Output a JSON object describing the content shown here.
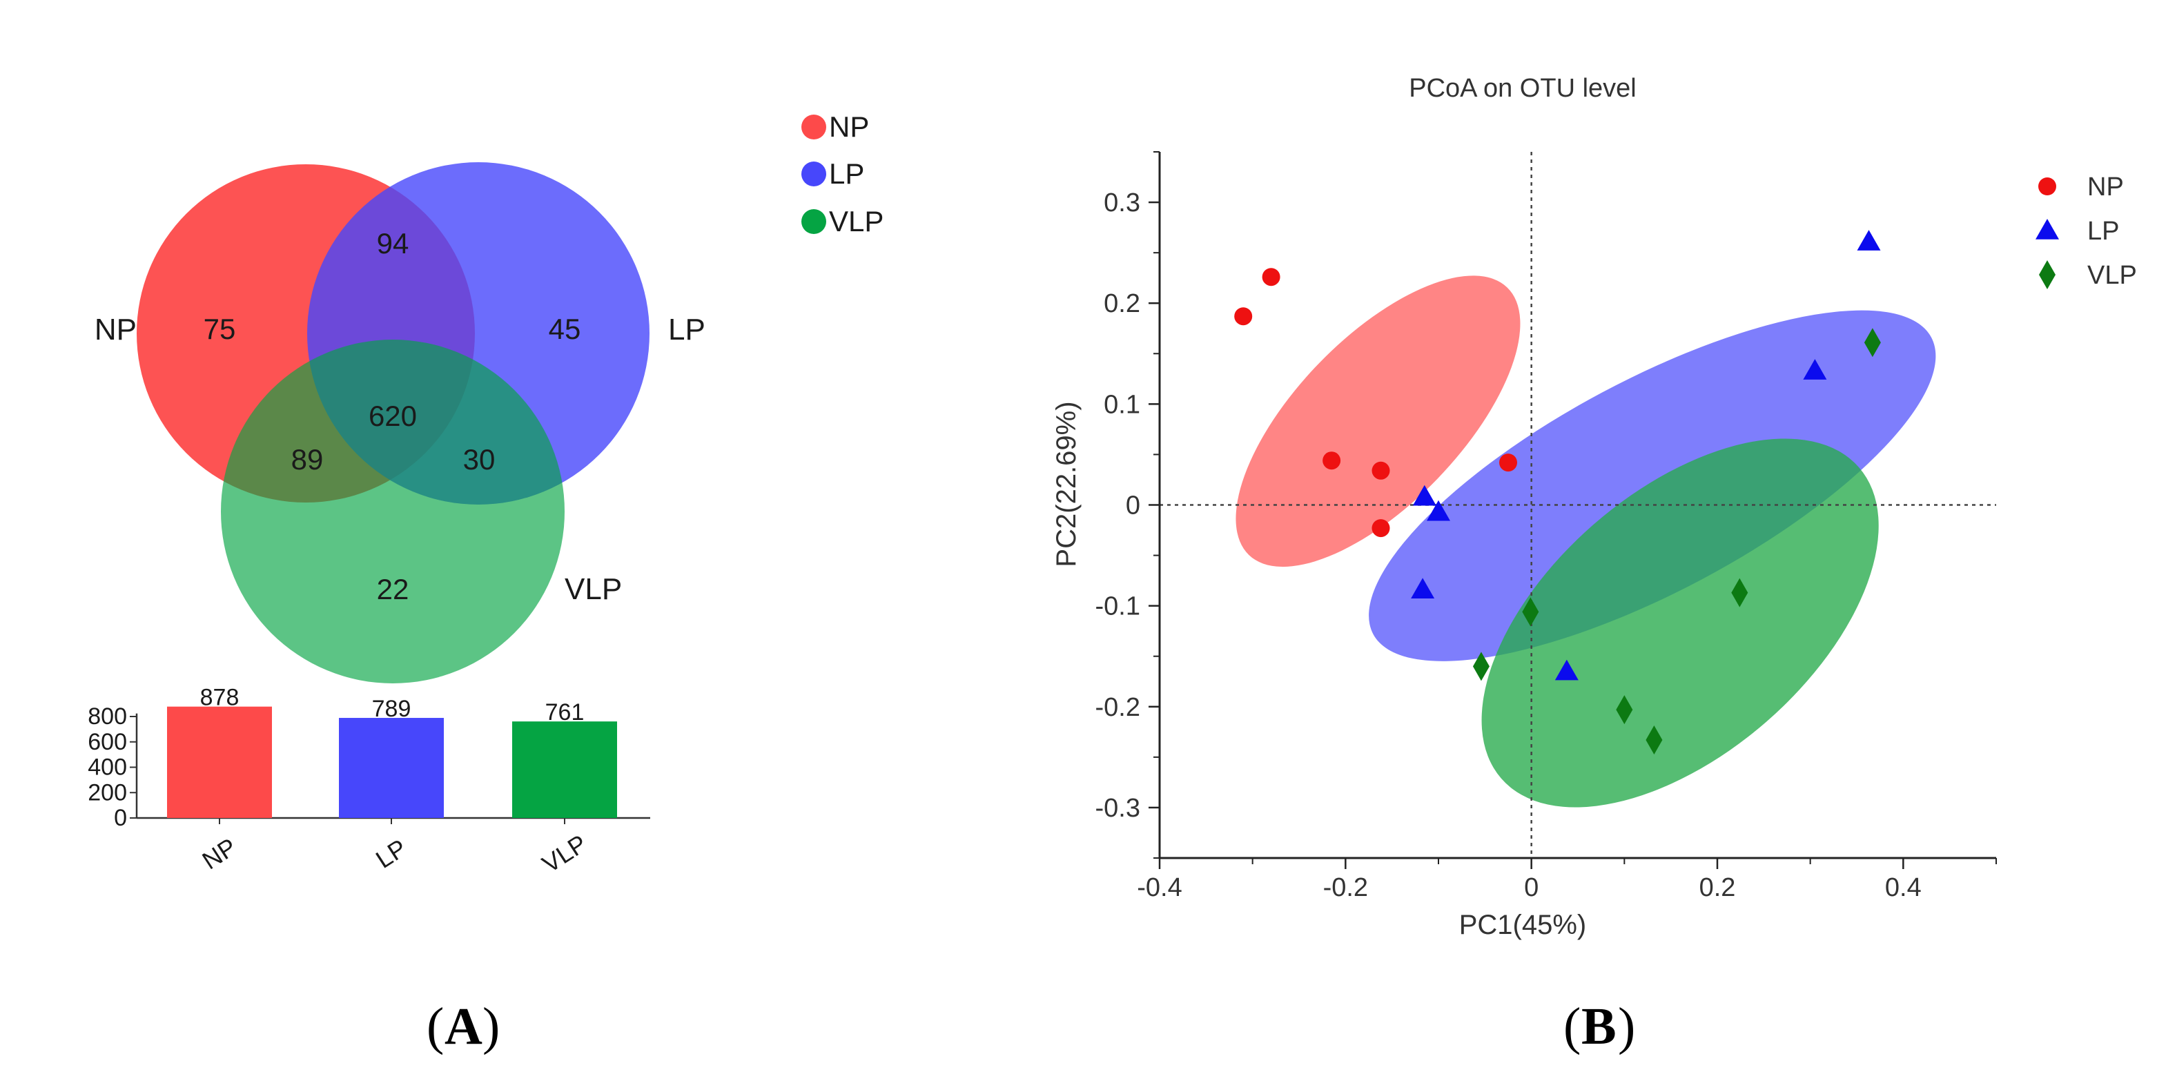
{
  "panel_labels": [
    "A",
    "B"
  ],
  "colors": {
    "NP": "#fd4a4a",
    "LP": "#4747fb",
    "VLP": "#05a443"
  },
  "chart_data": [
    {
      "type": "venn",
      "sets": [
        "NP",
        "LP",
        "VLP"
      ],
      "regions": {
        "NP_only": 75,
        "LP_only": 45,
        "VLP_only": 22,
        "NP_LP": 94,
        "NP_VLP": 89,
        "LP_VLP": 30,
        "NP_LP_VLP": 620
      },
      "legend": [
        "NP",
        "LP",
        "VLP"
      ]
    },
    {
      "type": "bar",
      "categories": [
        "NP",
        "LP",
        "VLP"
      ],
      "values": [
        878,
        789,
        761
      ],
      "yticks": [
        0,
        200,
        400,
        600,
        800
      ],
      "ylim": [
        0,
        900
      ],
      "colors": [
        "#fd4a4a",
        "#4747fb",
        "#05a443"
      ]
    },
    {
      "type": "scatter",
      "title": "PCoA on OTU level",
      "xlabel": "PC1(45%)",
      "ylabel": "PC2(22.69%)",
      "xlim": [
        -0.4,
        0.5
      ],
      "ylim": [
        -0.35,
        0.35
      ],
      "xticks": [
        -0.4,
        -0.2,
        0,
        0.2,
        0.4
      ],
      "xtick_labels": [
        "-0.4",
        "-0.2",
        "0",
        "0.2",
        "0.4"
      ],
      "yticks": [
        -0.3,
        -0.2,
        -0.1,
        0,
        0.1,
        0.2,
        0.3
      ],
      "ytick_labels": [
        "-0.3",
        "-0.2",
        "-0.1",
        "0",
        "0.1",
        "0.2",
        "0.3"
      ],
      "reference_lines": {
        "x": 0,
        "y": 0,
        "style": "dotted"
      },
      "series": [
        {
          "name": "NP",
          "marker": "circle",
          "color": "#ee1111",
          "x": [
            -0.31,
            -0.28,
            -0.215,
            -0.162,
            -0.162,
            -0.025
          ],
          "y": [
            0.187,
            0.226,
            0.044,
            0.034,
            -0.023,
            0.042
          ],
          "ellipse": {
            "cx": -0.165,
            "cy": 0.083,
            "rx": 0.2,
            "ry": 0.082,
            "angle_deg": 46,
            "fill": "#ff6a6a",
            "opacity": 0.82
          }
        },
        {
          "name": "LP",
          "marker": "triangle",
          "color": "#0b0bee",
          "x": [
            -0.115,
            -0.1,
            -0.117,
            0.038,
            0.305,
            0.363
          ],
          "y": [
            0.008,
            -0.007,
            -0.084,
            -0.165,
            0.133,
            0.261
          ],
          "ellipse": {
            "cx": 0.13,
            "cy": 0.019,
            "rx": 0.34,
            "ry": 0.105,
            "angle_deg": 28,
            "fill": "#6767fb",
            "opacity": 0.85
          }
        },
        {
          "name": "VLP",
          "marker": "diamond",
          "color": "#0c7a12",
          "x": [
            -0.054,
            -0.001,
            0.1,
            0.132,
            0.224,
            0.367
          ],
          "y": [
            -0.16,
            -0.106,
            -0.203,
            -0.233,
            -0.087,
            0.161
          ],
          "ellipse": {
            "cx": 0.16,
            "cy": -0.117,
            "rx": 0.255,
            "ry": 0.13,
            "angle_deg": 41,
            "fill": "#26aa4c",
            "opacity": 0.78
          }
        }
      ],
      "legend": [
        "NP",
        "LP",
        "VLP"
      ]
    }
  ]
}
